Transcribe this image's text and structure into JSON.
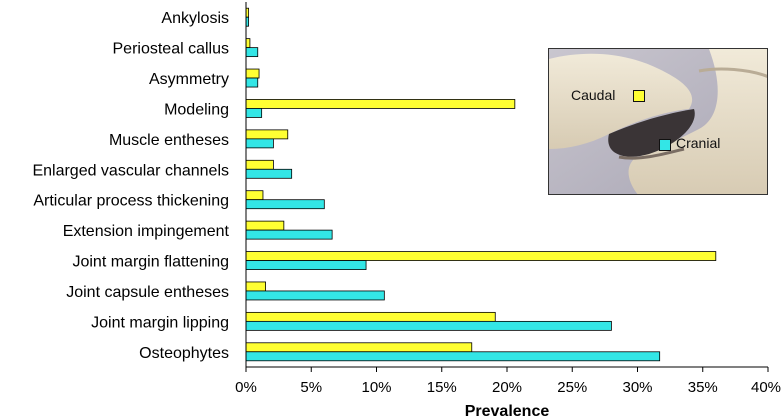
{
  "chart_data": {
    "type": "bar",
    "orientation": "horizontal",
    "categories": [
      "Ankylosis",
      "Periosteal callus",
      "Asymmetry",
      "Modeling",
      "Muscle entheses",
      "Enlarged vascular channels",
      "Articular process thickening",
      "Extension impingement",
      "Joint margin flattening",
      "Joint capsule entheses",
      "Joint margin lipping",
      "Osteophytes"
    ],
    "series": [
      {
        "name": "Caudal",
        "color": "#FFFF33",
        "values": [
          0.2,
          0.3,
          1.0,
          20.6,
          3.2,
          2.1,
          1.3,
          2.9,
          36.0,
          1.5,
          19.1,
          17.3
        ]
      },
      {
        "name": "Cranial",
        "color": "#33E6E6",
        "values": [
          0.2,
          0.9,
          0.9,
          1.2,
          2.1,
          3.5,
          6.0,
          6.6,
          9.2,
          10.6,
          28.0,
          31.7
        ]
      }
    ],
    "xlabel": "Prevalence",
    "ylabel": "",
    "xlim": [
      0,
      40
    ],
    "xticks": [
      "0%",
      "5%",
      "10%",
      "15%",
      "20%",
      "25%",
      "30%",
      "35%",
      "40%"
    ],
    "grid": false,
    "legend": "inset photo, right"
  },
  "legend": {
    "caudal_label": "Caudal",
    "cranial_label": "Cranial"
  }
}
